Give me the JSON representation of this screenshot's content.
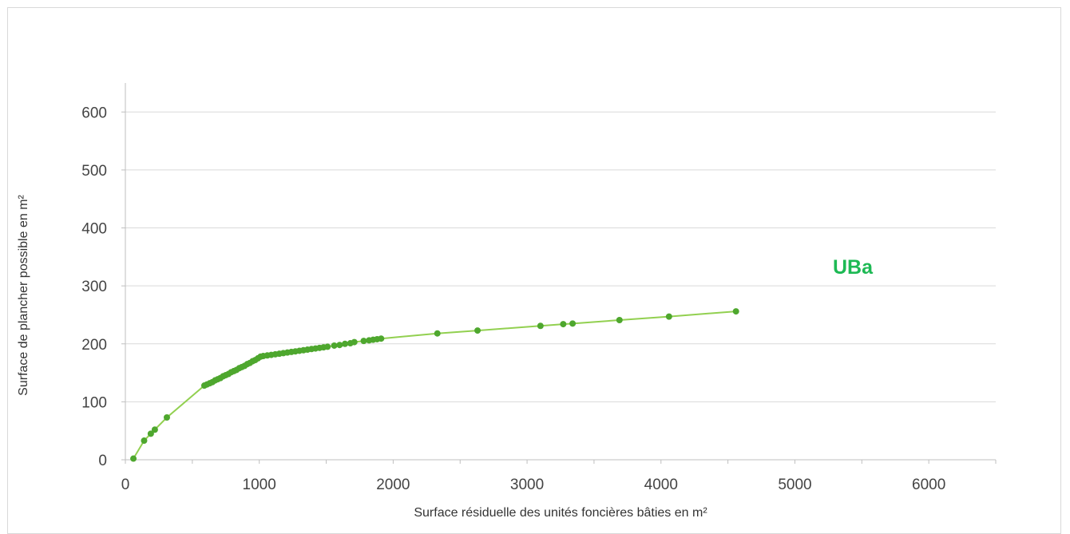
{
  "chart_data": {
    "type": "scatter",
    "title": "",
    "xlabel": "Surface résiduelle des unités foncières bâties en m²",
    "ylabel": "Surface de plancher possible en m²",
    "xlim": [
      0,
      6500
    ],
    "ylim": [
      0,
      650
    ],
    "x_ticks": [
      0,
      1000,
      2000,
      3000,
      4000,
      5000,
      6000
    ],
    "y_ticks": [
      0,
      100,
      200,
      300,
      400,
      500,
      600
    ],
    "grid": "horizontal",
    "legend": "none",
    "annotation": "UBa",
    "colors": {
      "line": "#92d050",
      "marker": "#4ea72e",
      "annotation": "#1db954",
      "grid": "#d9d9d9"
    },
    "series": [
      {
        "connected": true,
        "points": [
          [
            60,
            2
          ],
          [
            140,
            33
          ],
          [
            190,
            45
          ],
          [
            220,
            52
          ],
          [
            310,
            73
          ],
          [
            590,
            128
          ],
          [
            610,
            130
          ],
          [
            630,
            132
          ],
          [
            650,
            134
          ],
          [
            670,
            137
          ],
          [
            690,
            139
          ],
          [
            710,
            141
          ],
          [
            730,
            144
          ],
          [
            750,
            146
          ],
          [
            770,
            148
          ],
          [
            790,
            151
          ],
          [
            810,
            153
          ],
          [
            830,
            155
          ],
          [
            850,
            158
          ],
          [
            870,
            160
          ],
          [
            890,
            162
          ],
          [
            910,
            165
          ],
          [
            930,
            167
          ],
          [
            950,
            170
          ],
          [
            970,
            172
          ],
          [
            990,
            175
          ],
          [
            1010,
            178
          ],
          [
            1030,
            179
          ],
          [
            1060,
            180
          ],
          [
            1090,
            181
          ],
          [
            1120,
            182
          ],
          [
            1150,
            183
          ],
          [
            1180,
            184
          ],
          [
            1210,
            185
          ],
          [
            1240,
            186
          ],
          [
            1270,
            187
          ],
          [
            1300,
            188
          ],
          [
            1330,
            189
          ],
          [
            1360,
            190
          ],
          [
            1390,
            191
          ],
          [
            1420,
            192
          ],
          [
            1450,
            193
          ],
          [
            1480,
            194
          ],
          [
            1510,
            195
          ],
          [
            1560,
            197
          ],
          [
            1600,
            198
          ],
          [
            1640,
            200
          ],
          [
            1680,
            201
          ],
          [
            1710,
            203
          ],
          [
            1780,
            205
          ],
          [
            1820,
            206
          ],
          [
            1850,
            207
          ],
          [
            1880,
            208
          ],
          [
            1910,
            209
          ],
          [
            2330,
            218
          ],
          [
            2630,
            223
          ],
          [
            3100,
            231
          ],
          [
            3270,
            234
          ],
          [
            3340,
            235
          ],
          [
            3690,
            241
          ],
          [
            4060,
            247
          ],
          [
            4560,
            256
          ]
        ]
      }
    ]
  }
}
